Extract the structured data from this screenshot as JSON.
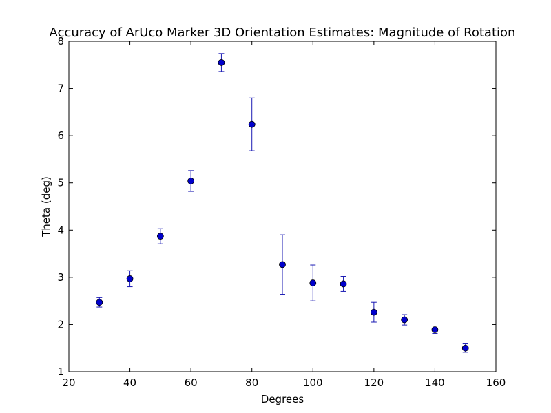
{
  "chart_data": {
    "type": "scatter",
    "title": "Accuracy of ArUco Marker 3D Orientation Estimates: Magnitude of Rotation",
    "xlabel": "Degrees",
    "ylabel": "Theta (deg)",
    "xlim": [
      20,
      160
    ],
    "ylim": [
      1,
      8
    ],
    "x_ticks": [
      "20",
      "40",
      "60",
      "80",
      "100",
      "120",
      "140",
      "160"
    ],
    "y_ticks": [
      "1",
      "2",
      "3",
      "4",
      "5",
      "6",
      "7",
      "8"
    ],
    "grid": false,
    "marker_color": "#0000cc",
    "errorbar_color": "#1a1ab3",
    "series": [
      {
        "x": [
          30,
          40,
          50,
          60,
          70,
          80,
          90,
          100,
          110,
          120,
          130,
          140,
          150
        ],
        "y": [
          2.47,
          2.97,
          3.87,
          5.04,
          7.55,
          6.24,
          3.27,
          2.88,
          2.86,
          2.26,
          2.1,
          1.89,
          1.5
        ],
        "yerr": [
          0.1,
          0.17,
          0.16,
          0.22,
          0.19,
          0.56,
          0.63,
          0.38,
          0.16,
          0.21,
          0.11,
          0.08,
          0.09
        ]
      }
    ]
  }
}
